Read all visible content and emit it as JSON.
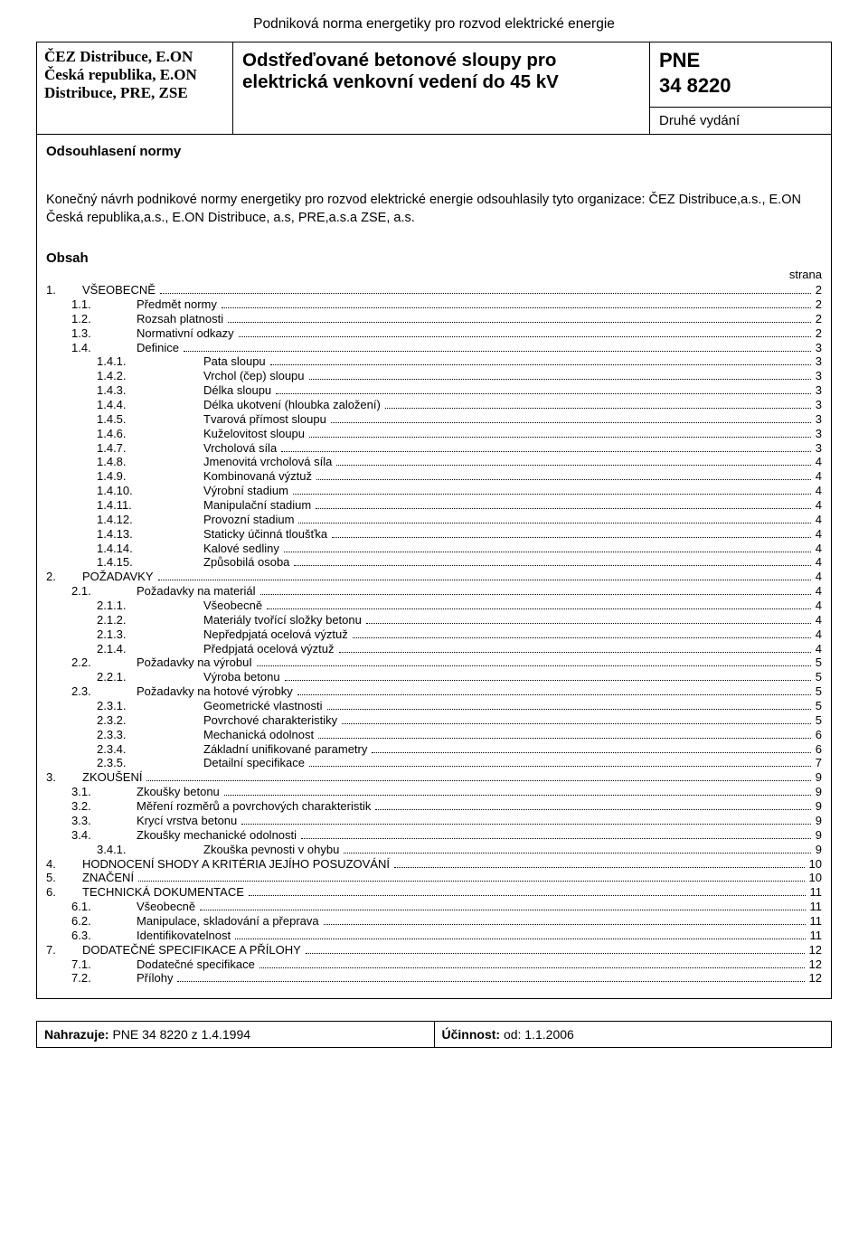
{
  "colors": {
    "text": "#000000",
    "background": "#ffffff",
    "border": "#000000"
  },
  "fonts": {
    "body_family": "Arial",
    "header_left_family": "Times New Roman",
    "body_size_pt": 13,
    "top_title_size_pt": 15.5,
    "header_mid_size_pt": 20.5,
    "header_code_size_pt": 22,
    "header_edition_size_pt": 15,
    "approval_title_size_pt": 15,
    "approval_text_size_pt": 14.5,
    "bottom_size_pt": 14
  },
  "top_title": "Podniková norma energetiky pro rozvod elektrické energie",
  "header": {
    "left": "ČEZ Distribuce, E.ON Česká republika, E.ON Distribuce, PRE, ZSE",
    "mid": "Odstřeďované betonové sloupy pro elektrická venkovní vedení do 45 kV",
    "code_line1": "PNE",
    "code_line2": "34 8220",
    "edition": "Druhé vydání"
  },
  "approval": {
    "title": "Odsouhlasení normy",
    "text": "Konečný návrh podnikové normy energetiky pro rozvod elektrické energie odsouhlasily tyto organizace: ČEZ Distribuce,a.s., E.ON Česká republika,a.s., E.ON Distribuce, a.s, PRE,a.s.a  ZSE, a.s."
  },
  "obsah": {
    "title": "Obsah",
    "page_label": "strana",
    "items": [
      {
        "indent": 0,
        "num": "1.",
        "label": "VŠEOBECNĚ",
        "page": "2"
      },
      {
        "indent": 1,
        "num": "1.1.",
        "label": "Předmět normy",
        "page": "2"
      },
      {
        "indent": 1,
        "num": "1.2.",
        "label": "Rozsah platnosti",
        "page": "2"
      },
      {
        "indent": 1,
        "num": "1.3.",
        "label": "Normativní odkazy",
        "page": "2"
      },
      {
        "indent": 1,
        "num": "1.4.",
        "label": "Definice",
        "page": "3"
      },
      {
        "indent": 2,
        "num": "1.4.1.",
        "label": "Pata sloupu",
        "page": "3"
      },
      {
        "indent": 2,
        "num": "1.4.2.",
        "label": "Vrchol (čep) sloupu",
        "page": "3"
      },
      {
        "indent": 2,
        "num": "1.4.3.",
        "label": "Délka sloupu",
        "page": "3"
      },
      {
        "indent": 2,
        "num": "1.4.4.",
        "label": "Délka ukotvení (hloubka založení)",
        "page": "3"
      },
      {
        "indent": 2,
        "num": "1.4.5.",
        "label": "Tvarová přímost sloupu",
        "page": "3"
      },
      {
        "indent": 2,
        "num": "1.4.6.",
        "label": "Kuželovitost sloupu",
        "page": "3"
      },
      {
        "indent": 2,
        "num": "1.4.7.",
        "label": "Vrcholová síla",
        "page": "3"
      },
      {
        "indent": 2,
        "num": "1.4.8.",
        "label": "Jmenovitá vrcholová síla",
        "page": "4"
      },
      {
        "indent": 2,
        "num": "1.4.9.",
        "label": "Kombinovaná výztuž",
        "page": "4"
      },
      {
        "indent": 2,
        "num": "1.4.10.",
        "label": "Výrobní stadium",
        "page": "4"
      },
      {
        "indent": 2,
        "num": "1.4.11.",
        "label": "Manipulační stadium",
        "page": "4"
      },
      {
        "indent": 2,
        "num": "1.4.12.",
        "label": "Provozní stadium",
        "page": "4"
      },
      {
        "indent": 2,
        "num": "1.4.13.",
        "label": "Staticky účinná tloušťka",
        "page": "4"
      },
      {
        "indent": 2,
        "num": "1.4.14.",
        "label": "Kalové sedliny",
        "page": "4"
      },
      {
        "indent": 2,
        "num": "1.4.15.",
        "label": "Způsobilá osoba",
        "page": "4"
      },
      {
        "indent": 0,
        "num": "2.",
        "label": "POŽADAVKY",
        "page": "4"
      },
      {
        "indent": 1,
        "num": "2.1.",
        "label": "Požadavky na materiál",
        "page": "4"
      },
      {
        "indent": 2,
        "num": "2.1.1.",
        "label": "Všeobecně",
        "page": "4"
      },
      {
        "indent": 2,
        "num": "2.1.2.",
        "label": "Materiály tvořící složky betonu",
        "page": "4"
      },
      {
        "indent": 2,
        "num": "2.1.3.",
        "label": "Nepředpjatá ocelová výztuž",
        "page": "4"
      },
      {
        "indent": 2,
        "num": "2.1.4.",
        "label": "Předpjatá ocelová výztuž",
        "page": "4"
      },
      {
        "indent": 1,
        "num": "2.2.",
        "label": "Požadavky na výrobuI",
        "page": "5"
      },
      {
        "indent": 2,
        "num": "2.2.1.",
        "label": "Výroba betonu",
        "page": "5"
      },
      {
        "indent": 1,
        "num": "2.3.",
        "label": "Požadavky na hotové výrobky",
        "page": "5"
      },
      {
        "indent": 2,
        "num": "2.3.1.",
        "label": "Geometrické vlastnosti",
        "page": "5"
      },
      {
        "indent": 2,
        "num": "2.3.2.",
        "label": "Povrchové charakteristiky",
        "page": "5"
      },
      {
        "indent": 2,
        "num": "2.3.3.",
        "label": "Mechanická odolnost",
        "page": "6"
      },
      {
        "indent": 2,
        "num": "2.3.4.",
        "label": "Základní unifikované parametry",
        "page": "6"
      },
      {
        "indent": 2,
        "num": "2.3.5.",
        "label": "Detailní specifikace",
        "page": "7"
      },
      {
        "indent": 0,
        "num": "3.",
        "label": "ZKOUŠENÍ",
        "page": "9"
      },
      {
        "indent": 1,
        "num": "3.1.",
        "label": "Zkoušky betonu",
        "page": "9"
      },
      {
        "indent": 1,
        "num": "3.2.",
        "label": "Měření rozměrů a povrchových charakteristik",
        "page": "9"
      },
      {
        "indent": 1,
        "num": "3.3.",
        "label": "Krycí vrstva betonu",
        "page": "9"
      },
      {
        "indent": 1,
        "num": "3.4.",
        "label": "Zkoušky mechanické odolnosti",
        "page": "9"
      },
      {
        "indent": 2,
        "num": "3.4.1.",
        "label": "Zkouška pevnosti v ohybu",
        "page": "9"
      },
      {
        "indent": 0,
        "num": "4.",
        "label": "HODNOCENÍ SHODY A KRITÉRIA JEJÍHO POSUZOVÁNÍ",
        "page": "10"
      },
      {
        "indent": 0,
        "num": "5.",
        "label": "ZNAČENÍ",
        "page": "10"
      },
      {
        "indent": 0,
        "num": "6.",
        "label": "TECHNICKÁ DOKUMENTACE",
        "page": "11"
      },
      {
        "indent": 1,
        "num": "6.1.",
        "label": "Všeobecně",
        "page": "11"
      },
      {
        "indent": 1,
        "num": "6.2.",
        "label": "Manipulace, skladování a přeprava",
        "page": "11"
      },
      {
        "indent": 1,
        "num": "6.3.",
        "label": "Identifikovatelnost",
        "page": "11"
      },
      {
        "indent": 0,
        "num": "7.",
        "label": "DODATEČNÉ SPECIFIKACE A PŘÍLOHY",
        "page": "12"
      },
      {
        "indent": 1,
        "num": "7.1.",
        "label": "Dodatečné specifikace",
        "page": "12"
      },
      {
        "indent": 1,
        "num": "7.2.",
        "label": "Přílohy",
        "page": "12"
      }
    ]
  },
  "footer": {
    "replaces_label": "Nahrazuje:",
    "replaces_value": " PNE 34 8220 z 1.4.1994",
    "effective_label": "Účinnost:",
    "effective_value": " od: 1.1.2006"
  }
}
